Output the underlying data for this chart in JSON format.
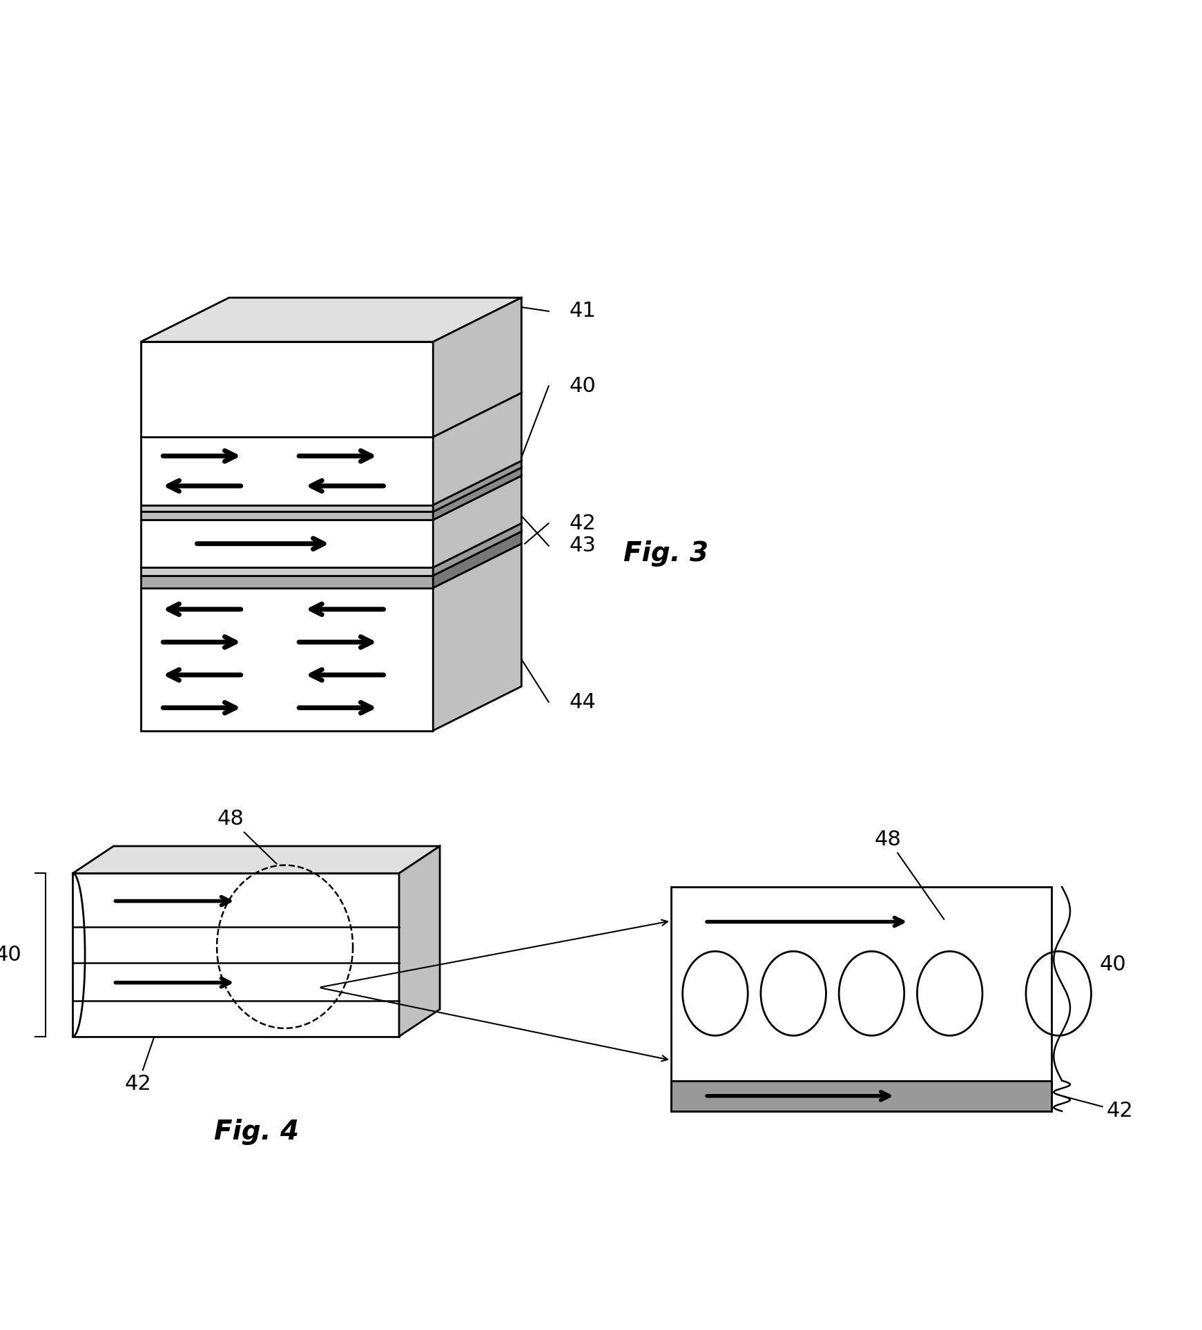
{
  "bg_color": "#ffffff",
  "fig_width": 17.41,
  "fig_height": 19.27,
  "fig3_label": "Fig. 3",
  "fig4_label": "Fig. 4",
  "label_fs": 22,
  "fig_label_fs": 28
}
